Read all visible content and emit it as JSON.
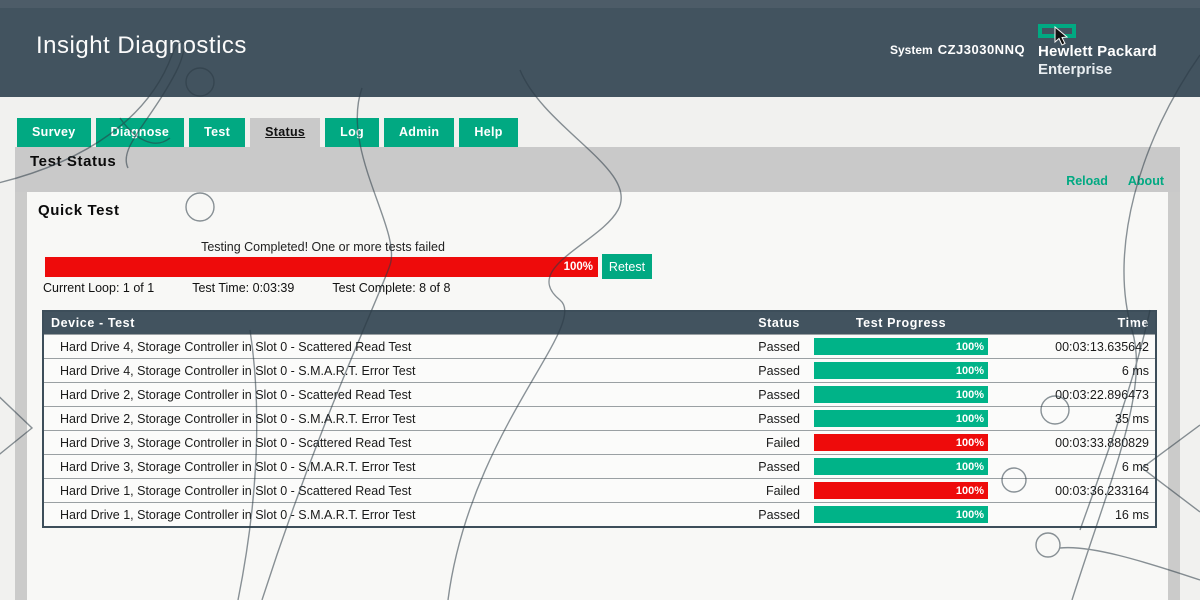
{
  "header": {
    "title": "Insight Diagnostics",
    "system_label": "System",
    "system_id": "CZJ3030NNQ",
    "brand_line1": "Hewlett Packard",
    "brand_line2": "Enterprise"
  },
  "tabs": [
    {
      "label": "Survey",
      "active": false
    },
    {
      "label": "Diagnose",
      "active": false
    },
    {
      "label": "Test",
      "active": false
    },
    {
      "label": "Status",
      "active": true
    },
    {
      "label": "Log",
      "active": false
    },
    {
      "label": "Admin",
      "active": false
    },
    {
      "label": "Help",
      "active": false
    }
  ],
  "statusbar": {
    "title": "Test Status",
    "links": [
      "Reload",
      "About"
    ]
  },
  "quick_test": {
    "title": "Quick Test",
    "message": "Testing Completed! One or more tests failed",
    "overall_progress": "100%",
    "retest_label": "Retest",
    "current_loop": "Current Loop: 1 of 1",
    "test_time": "Test Time: 0:03:39",
    "test_complete": "Test Complete: 8 of 8"
  },
  "results_table": {
    "columns": [
      "Device - Test",
      "Status",
      "Test Progress",
      "Time"
    ],
    "rows": [
      {
        "device_test": "Hard Drive 4, Storage Controller in Slot 0 - Scattered Read Test",
        "status": "Passed",
        "progress": "100%",
        "time": "00:03:13.635642"
      },
      {
        "device_test": "Hard Drive 4, Storage Controller in Slot 0 - S.M.A.R.T. Error Test",
        "status": "Passed",
        "progress": "100%",
        "time": "6 ms"
      },
      {
        "device_test": "Hard Drive 2, Storage Controller in Slot 0 - Scattered Read Test",
        "status": "Passed",
        "progress": "100%",
        "time": "00:03:22.896473"
      },
      {
        "device_test": "Hard Drive 2, Storage Controller in Slot 0 - S.M.A.R.T. Error Test",
        "status": "Passed",
        "progress": "100%",
        "time": "35 ms"
      },
      {
        "device_test": "Hard Drive 3, Storage Controller in Slot 0 - Scattered Read Test",
        "status": "Failed",
        "progress": "100%",
        "time": "00:03:33.880829"
      },
      {
        "device_test": "Hard Drive 3, Storage Controller in Slot 0 - S.M.A.R.T. Error Test",
        "status": "Passed",
        "progress": "100%",
        "time": "6 ms"
      },
      {
        "device_test": "Hard Drive 1, Storage Controller in Slot 0 - Scattered Read Test",
        "status": "Failed",
        "progress": "100%",
        "time": "00:03:36.233164"
      },
      {
        "device_test": "Hard Drive 1, Storage Controller in Slot 0 - S.M.A.R.T. Error Test",
        "status": "Passed",
        "progress": "100%",
        "time": "16 ms"
      }
    ]
  },
  "colors": {
    "brand_green": "#01a982",
    "pass_green": "#00b388",
    "fail_red": "#ee0b0b",
    "slate": "#42535f",
    "band_gray": "#c9c9c9"
  }
}
